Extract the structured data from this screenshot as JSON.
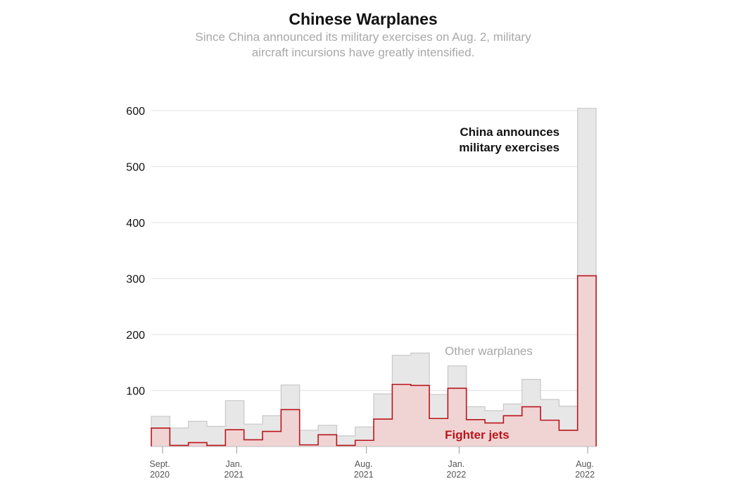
{
  "header": {
    "title": "Chinese Warplanes",
    "subtitle": "Since China announced its military exercises on Aug. 2, military aircraft incursions have greatly intensified."
  },
  "chart_data": {
    "type": "area",
    "title": "Chinese Warplanes",
    "xlabel": "",
    "ylabel": "",
    "ylim": [
      0,
      600
    ],
    "yticks": [
      100,
      200,
      300,
      400,
      500,
      600
    ],
    "grid": true,
    "x_ticks": [
      {
        "label1": "Sept.",
        "label2": "2020",
        "index": 0
      },
      {
        "label1": "Jan.",
        "label2": "2021",
        "index": 4
      },
      {
        "label1": "Aug.",
        "label2": "2021",
        "index": 11
      },
      {
        "label1": "Jan.",
        "label2": "2022",
        "index": 16
      },
      {
        "label1": "Aug.",
        "label2": "2022",
        "index": 23
      }
    ],
    "series": [
      {
        "name": "Other warplanes",
        "values": [
          54,
          33,
          45,
          36,
          82,
          40,
          55,
          110,
          29,
          38,
          19,
          35,
          94,
          163,
          167,
          93,
          144,
          71,
          64,
          76,
          120,
          84,
          72,
          604
        ],
        "color": "#e7e7e7",
        "stroke": "#c8c8c8"
      },
      {
        "name": "Fighter jets",
        "values": [
          33,
          2,
          7,
          2,
          30,
          12,
          27,
          66,
          3,
          21,
          2,
          11,
          49,
          111,
          109,
          50,
          104,
          48,
          42,
          55,
          71,
          47,
          29,
          305
        ],
        "color": "#f0d4d4",
        "stroke": "#b8161c"
      }
    ],
    "annotations": [
      {
        "text_line1": "China announces",
        "text_line2": "military exercises"
      }
    ]
  }
}
